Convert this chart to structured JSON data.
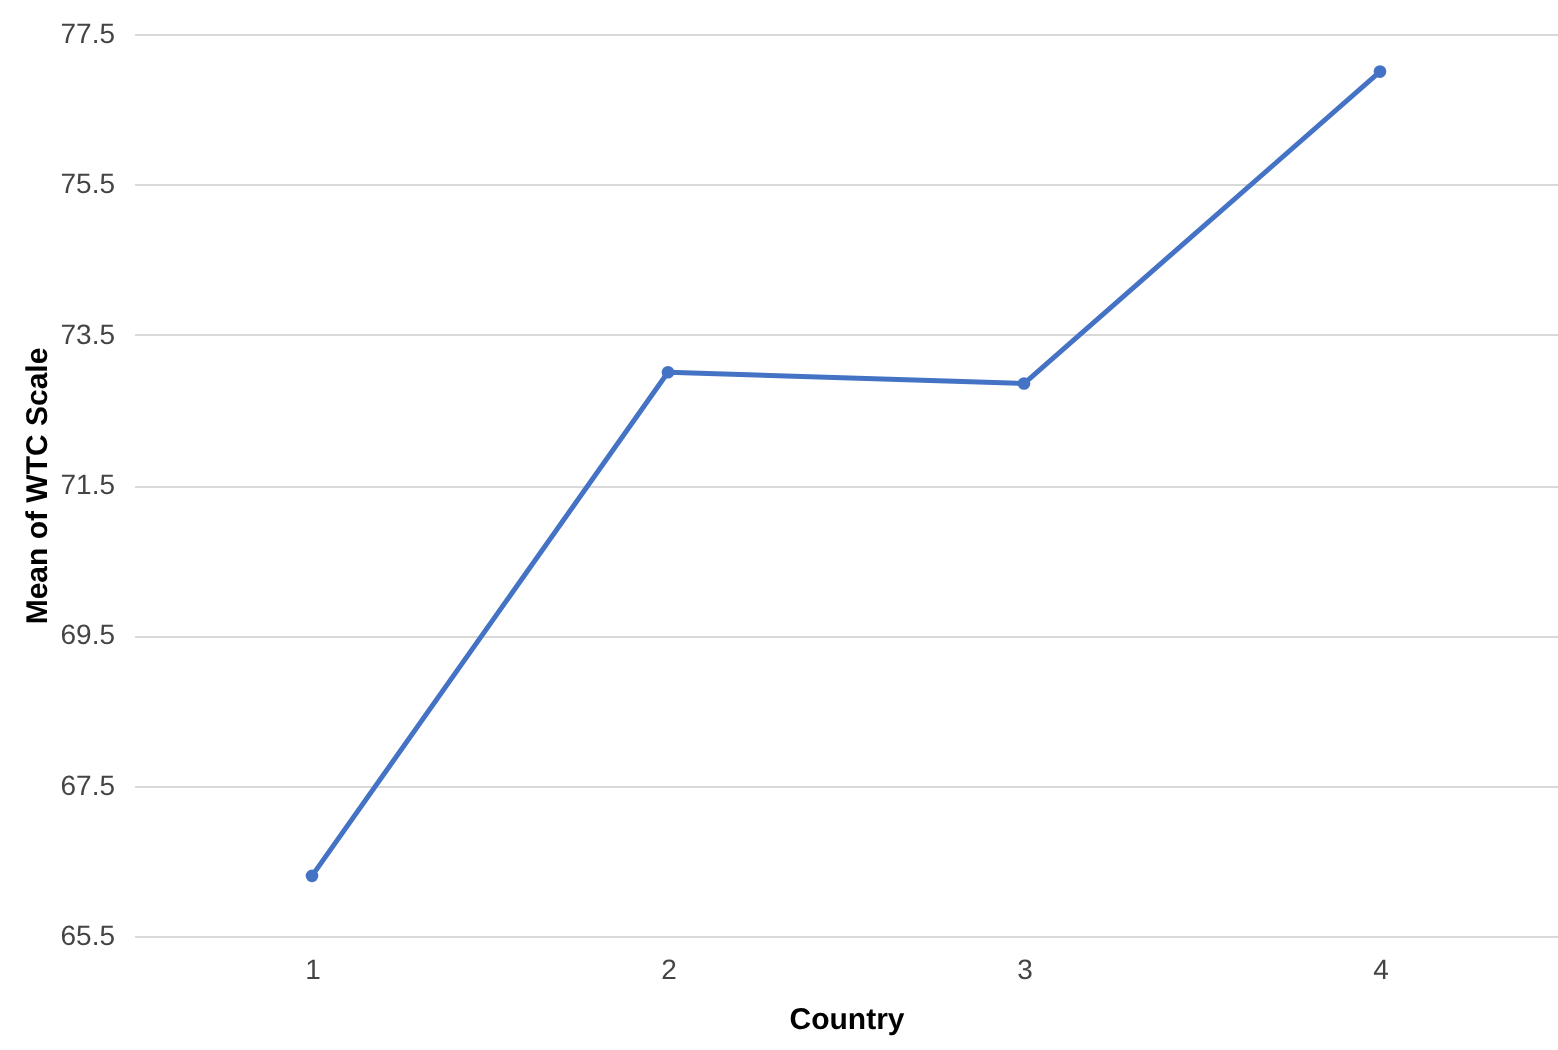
{
  "chart_data": {
    "type": "line",
    "xlabel": "Country",
    "ylabel": "Mean of WTC Scale",
    "categories": [
      "1",
      "2",
      "3",
      "4"
    ],
    "series": [
      {
        "color": "#4472c4",
        "values": [
          66.3,
          73.0,
          72.85,
          77.0
        ]
      }
    ],
    "ylim": [
      65.5,
      77.5
    ],
    "yticks": [
      65.5,
      67.5,
      69.5,
      71.5,
      73.5,
      75.5,
      77.5
    ],
    "grid": "y",
    "marker": "circle",
    "line_style": "solid",
    "legend": false
  }
}
